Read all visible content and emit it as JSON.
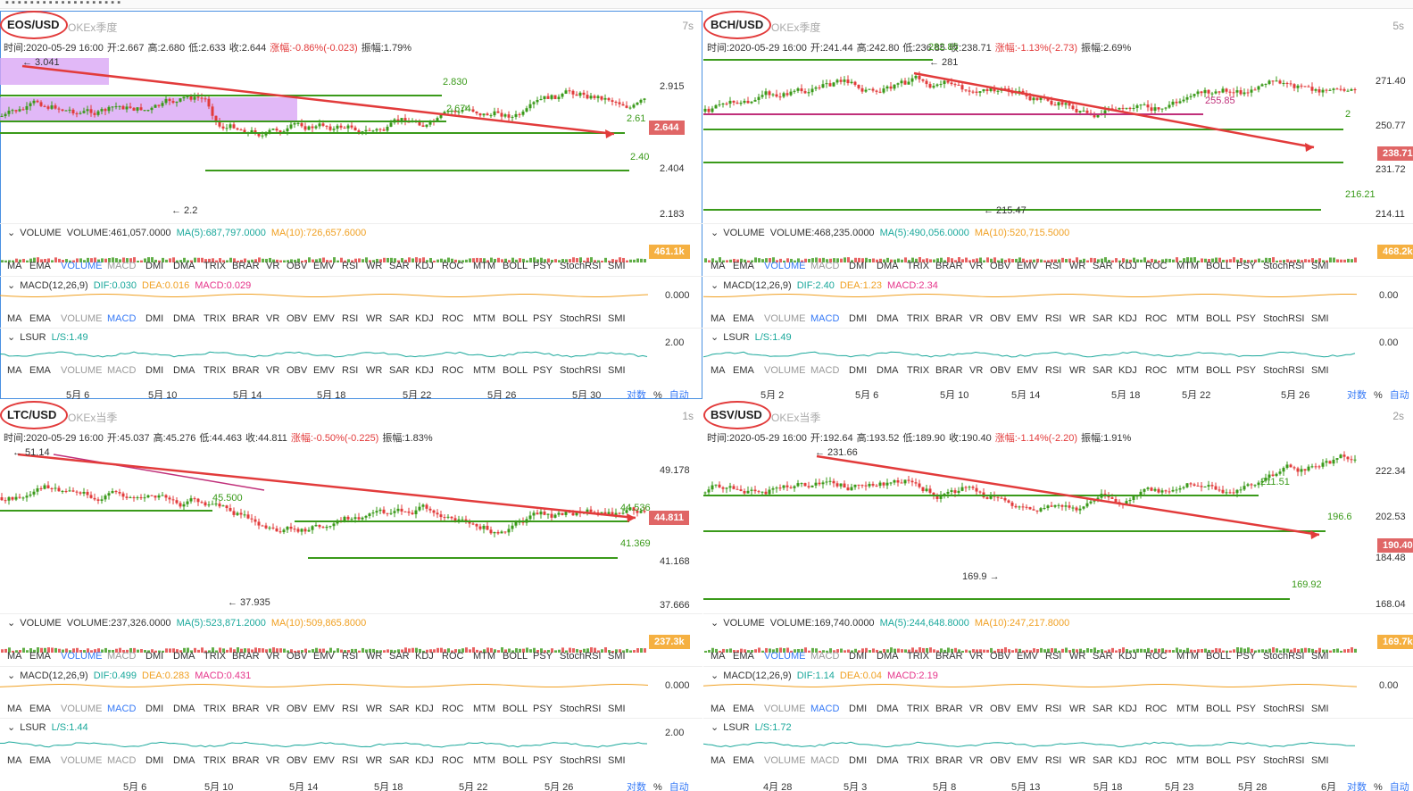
{
  "panels": [
    {
      "id": "eos",
      "symbol": "EOS/USD",
      "exchange": "OKEx季度",
      "interval": "7s",
      "ohlc": {
        "time": "时间:2020-05-29 16:00",
        "open": "开:2.667",
        "high": "高:2.680",
        "low": "低:2.633",
        "close": "收:2.644",
        "change": "涨幅:-0.86%(-0.023)",
        "amp": "振幅:1.79%"
      },
      "yticks": [
        "2.915",
        "2.404",
        "2.183"
      ],
      "price_tag": "2.644",
      "annotations": {
        "hi": "← 3.041",
        "lo": "← 2.2",
        "g1": "2.830",
        "g2": "2.674",
        "g3": "2.61",
        "g4": "2.40"
      },
      "volume": {
        "label": "VOLUME",
        "val": "VOLUME:461,057.0000",
        "ma5": "MA(5):687,797.0000",
        "ma10": "MA(10):726,657.6000",
        "tag": "461.1k"
      },
      "macd": {
        "label": "MACD(12,26,9)",
        "dif": "DIF:0.030",
        "dea": "DEA:0.016",
        "macd": "MACD:0.029",
        "tick": "0.000"
      },
      "lsur": {
        "label": "LSUR",
        "ls": "L/S:1.49",
        "tick": "2.00"
      },
      "xlabels": [
        "5月 6",
        "5月 10",
        "5月 14",
        "5月 18",
        "5月 22",
        "5月 26",
        "5月 30"
      ]
    },
    {
      "id": "bch",
      "symbol": "BCH/USD",
      "exchange": "OKEx季度",
      "interval": "5s",
      "ohlc": {
        "time": "时间:2020-05-29 16:00",
        "open": "开:241.44",
        "high": "高:242.80",
        "low": "低:236.85",
        "close": "收:238.71",
        "change": "涨幅:-1.13%(-2.73)",
        "amp": "振幅:2.69%"
      },
      "yticks": [
        "271.40",
        "250.77",
        "231.72",
        "214.11"
      ],
      "price_tag": "238.71",
      "annotations": {
        "hi": "← 281",
        "lo": "← 215.47",
        "g1": "255.85",
        "g2": "2",
        "g3": "216.21",
        "g4": "282.85"
      },
      "volume": {
        "label": "VOLUME",
        "val": "VOLUME:468,235.0000",
        "ma5": "MA(5):490,056.0000",
        "ma10": "MA(10):520,715.5000",
        "tag": "468.2k"
      },
      "macd": {
        "label": "MACD(12,26,9)",
        "dif": "DIF:2.40",
        "dea": "DEA:1.23",
        "macd": "MACD:2.34",
        "tick": "0.00"
      },
      "lsur": {
        "label": "LSUR",
        "ls": "L/S:1.49",
        "tick": "0.00"
      },
      "xlabels": [
        "5月 2",
        "5月 6",
        "5月 10",
        "5月 14",
        "5月 18",
        "5月 22",
        "5月 26"
      ]
    },
    {
      "id": "ltc",
      "symbol": "LTC/USD",
      "exchange": "OKEx当季",
      "interval": "1s",
      "ohlc": {
        "time": "时间:2020-05-29 16:00",
        "open": "开:45.037",
        "high": "高:45.276",
        "low": "低:44.463",
        "close": "收:44.811",
        "change": "涨幅:-0.50%(-0.225)",
        "amp": "振幅:1.83%"
      },
      "yticks": [
        "49.178",
        "41.168",
        "37.666"
      ],
      "price_tag": "44.811",
      "annotations": {
        "hi": "← 51.14",
        "lo": "← 37.935",
        "g1": "45.500",
        "g2": "44.536",
        "g3": "41.369",
        "g4": ""
      },
      "volume": {
        "label": "VOLUME",
        "val": "VOLUME:237,326.0000",
        "ma5": "MA(5):523,871.2000",
        "ma10": "MA(10):509,865.8000",
        "tag": "237.3k"
      },
      "macd": {
        "label": "MACD(12,26,9)",
        "dif": "DIF:0.499",
        "dea": "DEA:0.283",
        "macd": "MACD:0.431",
        "tick": "0.000"
      },
      "lsur": {
        "label": "LSUR",
        "ls": "L/S:1.44",
        "tick": "2.00"
      },
      "xlabels": [
        "5月 6",
        "5月 10",
        "5月 14",
        "5月 18",
        "5月 22",
        "5月 26"
      ]
    },
    {
      "id": "bsv",
      "symbol": "BSV/USD",
      "exchange": "OKEx当季",
      "interval": "2s",
      "ohlc": {
        "time": "时间:2020-05-29 16:00",
        "open": "开:192.64",
        "high": "高:193.52",
        "low": "低:189.90",
        "close": "收:190.40",
        "change": "涨幅:-1.14%(-2.20)",
        "amp": "振幅:1.91%"
      },
      "yticks": [
        "222.34",
        "202.53",
        "184.48",
        "168.04"
      ],
      "price_tag": "190.40",
      "annotations": {
        "hi": "← 231.66",
        "lo": "169.9 →",
        "g1": "211.51",
        "g2": "196.6",
        "g3": "169.92",
        "g4": ""
      },
      "volume": {
        "label": "VOLUME",
        "val": "VOLUME:169,740.0000",
        "ma5": "MA(5):244,648.8000",
        "ma10": "MA(10):247,217.8000",
        "tag": "169.7k"
      },
      "macd": {
        "label": "MACD(12,26,9)",
        "dif": "DIF:1.14",
        "dea": "DEA:0.04",
        "macd": "MACD:2.19",
        "tick": "0.00"
      },
      "lsur": {
        "label": "LSUR",
        "ls": "L/S:1.72",
        "tick": ""
      },
      "xlabels": [
        "4月 28",
        "5月 3",
        "5月 8",
        "5月 13",
        "5月 18",
        "5月 23",
        "5月 28",
        "6月"
      ]
    }
  ],
  "indicator_tabs": [
    "MA",
    "EMA",
    "VOLUME",
    "MACD",
    "DMI",
    "DMA",
    "TRIX",
    "BRAR",
    "VR",
    "OBV",
    "EMV",
    "RSI",
    "WR",
    "SAR",
    "KDJ",
    "ROC",
    "MTM",
    "BOLL",
    "PSY",
    "StochRSI",
    "SMI"
  ],
  "footer": {
    "log": "对数",
    "pct": "%",
    "auto": "自动"
  },
  "colors": {
    "up": "#3a9a1a",
    "down": "#e23b3b",
    "trend": "#e23b3b",
    "support": "#3a9a1a",
    "purple": "#d9a6f5",
    "pink": "#c0307a"
  },
  "chart_data": [
    {
      "type": "candlestick",
      "symbol": "EOS/USD",
      "title": "EOS/USD",
      "ylim": [
        2.1,
        3.1
      ],
      "support_levels": [
        2.83,
        2.674,
        2.61,
        2.404
      ],
      "trendline": [
        3.041,
        2.61
      ],
      "extrema": {
        "high": 3.041,
        "low": 2.2
      },
      "last": 2.644
    },
    {
      "type": "candlestick",
      "symbol": "BCH/USD",
      "title": "BCH/USD",
      "ylim": [
        205,
        285
      ],
      "support_levels": [
        282.85,
        250.77,
        231.72,
        214.11
      ],
      "trendline": [
        281,
        238
      ],
      "extrema": {
        "high": 281,
        "low": 215.47
      },
      "last": 238.71
    },
    {
      "type": "candlestick",
      "symbol": "LTC/USD",
      "title": "LTC/USD",
      "ylim": [
        37,
        52
      ],
      "support_levels": [
        45.5,
        44.536,
        41.369
      ],
      "trendline": [
        51.14,
        44.536
      ],
      "extrema": {
        "high": 51.14,
        "low": 37.935
      },
      "last": 44.811
    },
    {
      "type": "candlestick",
      "symbol": "BSV/USD",
      "title": "BSV/USD",
      "ylim": [
        165,
        235
      ],
      "support_levels": [
        211.51,
        196.6,
        169.92
      ],
      "trendline": [
        231.66,
        196.6
      ],
      "extrema": {
        "high": 231.66,
        "low": 169.9
      },
      "last": 190.4
    }
  ]
}
